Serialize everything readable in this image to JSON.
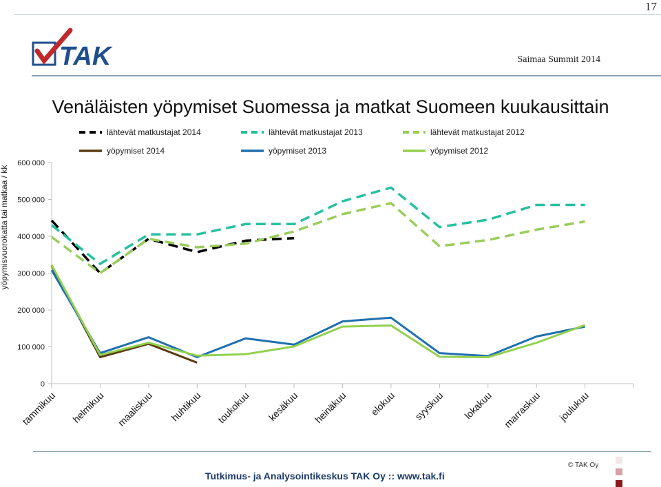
{
  "page_number": "17",
  "header": {
    "event": "Saimaa Summit 2014",
    "logo_text": "TAK"
  },
  "title": "Venäläisten yöpymiset Suomessa ja matkat Suomeen kuukausittain",
  "footer": {
    "text": "Tutkimus- ja Analysointikeskus TAK Oy   ::   www.tak.fi",
    "copyright": "© TAK Oy"
  },
  "colors": {
    "dark_2014": "#5a3a10",
    "black_2014": "#000000",
    "teal_2013": "#26c0a0",
    "blue_2013": "#1f6fae",
    "green_2012": "#9acd5a",
    "green_line_2012": "#92d050",
    "footer_blue": "#1b3a6b",
    "logo_blue": "#1f4e8c",
    "logo_red": "#c0282d"
  },
  "chart_data": {
    "type": "line",
    "categories": [
      "tammikuu",
      "helmikuu",
      "maaliskuu",
      "huhtikuu",
      "toukokuu",
      "kesäkuu",
      "heinäkuu",
      "elokuu",
      "syyskuu",
      "lokakuu",
      "marraskuu",
      "joulukuu"
    ],
    "ylabel": "yöpymisvuorokatta tai matkaa / kk",
    "ylim": [
      0,
      600000
    ],
    "yticks": [
      0,
      100000,
      200000,
      300000,
      400000,
      500000,
      600000
    ],
    "ytick_labels": [
      "0",
      "100 000",
      "200 000",
      "300 000",
      "400 000",
      "500 000",
      "600 000"
    ],
    "grid": false,
    "legend_position": "top",
    "series": [
      {
        "name": "lähtevät matkustajat  2014",
        "style": "dashed",
        "color": "#000000",
        "values": [
          443000,
          300000,
          393000,
          357000,
          388000,
          395000,
          null,
          null,
          null,
          null,
          null,
          null
        ]
      },
      {
        "name": "lähtevät matkustajat  2013",
        "style": "dashed",
        "color": "#26c0a0",
        "values": [
          430000,
          325000,
          405000,
          405000,
          433000,
          433000,
          495000,
          532000,
          425000,
          445000,
          485000,
          485000
        ]
      },
      {
        "name": "lähtevät matkustajat  2012",
        "style": "dashed",
        "color": "#9acd5a",
        "values": [
          398000,
          300000,
          393000,
          370000,
          380000,
          413000,
          460000,
          490000,
          373000,
          390000,
          418000,
          440000
        ]
      },
      {
        "name": "yöpymiset 2014",
        "style": "solid",
        "color": "#5a3a10",
        "values": [
          320000,
          72000,
          108000,
          57000,
          null,
          null,
          null,
          null,
          null,
          null,
          null,
          null
        ]
      },
      {
        "name": "yöpymiset 2013",
        "style": "solid",
        "color": "#1f6fae",
        "values": [
          308000,
          83000,
          126000,
          72000,
          123000,
          106000,
          169000,
          179000,
          83000,
          75000,
          128000,
          155000
        ]
      },
      {
        "name": "yöpymiset 2012",
        "style": "solid",
        "color": "#92d050",
        "values": [
          322000,
          78000,
          111000,
          76000,
          80000,
          101000,
          155000,
          158000,
          73000,
          72000,
          111000,
          159000
        ]
      }
    ]
  }
}
